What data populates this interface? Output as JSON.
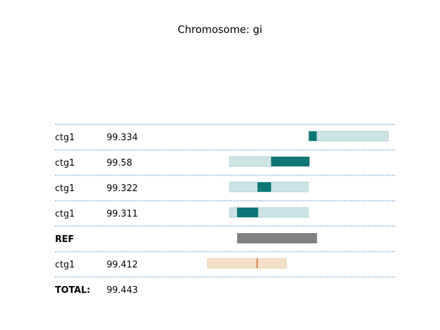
{
  "title": "Chromosome: gi",
  "colors": {
    "hit": "#0e7676",
    "hit_bg": "#cde4e4",
    "ref": "#808080",
    "alt": "#c86a28",
    "alt_bg": "#f5dfc9",
    "divider": "#1f6fb4"
  },
  "axis": {
    "min": 0,
    "max": 100
  },
  "rows": [
    {
      "name": "ctg1",
      "value": "99.334",
      "bold": false,
      "kind": "hit",
      "bg": [
        74.6,
        97.9
      ],
      "fg": [
        74.6,
        76.9
      ]
    },
    {
      "name": "ctg1",
      "value": "99.58",
      "bold": false,
      "kind": "hit",
      "bg": [
        51.3,
        74.4
      ],
      "fg": [
        63.5,
        74.8
      ]
    },
    {
      "name": "ctg1",
      "value": "99.322",
      "bold": false,
      "kind": "hit",
      "bg": [
        51.3,
        74.4
      ],
      "fg": [
        59.5,
        63.5
      ]
    },
    {
      "name": "ctg1",
      "value": "99.311",
      "bold": false,
      "kind": "hit",
      "bg": [
        51.3,
        74.4
      ],
      "fg": [
        53.5,
        59.7
      ]
    },
    {
      "name": "REF",
      "value": "",
      "bold": true,
      "kind": "ref",
      "fg": [
        53.5,
        77.0
      ]
    },
    {
      "name": "ctg1",
      "value": "99.412",
      "bold": false,
      "kind": "alt",
      "bg": [
        44.8,
        67.9
      ],
      "mark": 59.4
    },
    {
      "name": "TOTAL:",
      "value": "99.443",
      "bold": true,
      "kind": "total"
    }
  ]
}
